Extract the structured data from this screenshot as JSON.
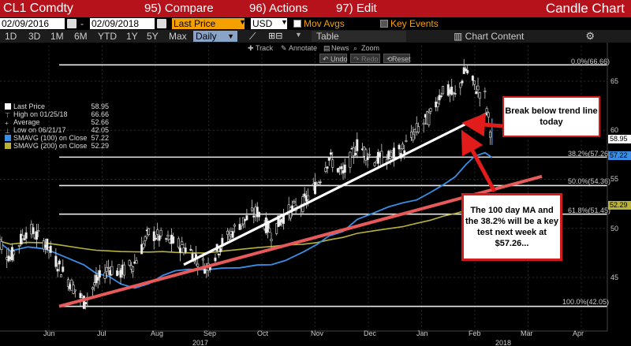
{
  "titlebar": {
    "ticker": "CL1 Comdty",
    "menu_compare": "95) Compare",
    "menu_actions": "96) Actions",
    "menu_edit": "97) Edit",
    "chart_name": "Candle Chart"
  },
  "controls": {
    "date_from": "02/09/2016",
    "date_to": "02/09/2018",
    "price_field": "Last Price",
    "currency": "USD",
    "mov_avgs_label": "Mov Avgs",
    "key_events_label": "Key Events"
  },
  "toolbar": {
    "ranges": [
      "1D",
      "3D",
      "1M",
      "6M",
      "YTD",
      "1Y",
      "5Y",
      "Max"
    ],
    "frequency": "Daily",
    "table_label": "Table",
    "chart_content_label": "Chart Content"
  },
  "annotation_tools": {
    "track": "Track",
    "annotate": "Annotate",
    "news": "News",
    "zoom": "Zoom",
    "undo": "Undo",
    "redo": "Redo",
    "reset": "Reset"
  },
  "legend": [
    {
      "label": "Last Price",
      "value": "58.95",
      "color": "#ffffff"
    },
    {
      "label": "High on 01/25/18",
      "value": "66.66",
      "color": ""
    },
    {
      "label": "Average",
      "value": "52.66",
      "color": ""
    },
    {
      "label": "Low on 06/21/17",
      "value": "42.05",
      "color": ""
    },
    {
      "label": "SMAVG (100) on Close",
      "value": "57.22",
      "color": "#3a8ee6"
    },
    {
      "label": "SMAVG (200) on Close",
      "value": "52.29",
      "color": "#b8b23a"
    }
  ],
  "annotations": {
    "trend_break": "Break below trend line today",
    "ma_test": "The 100 day MA and the 38.2% will be a key test next week at $57.26..."
  },
  "fib_levels": [
    {
      "label": "0.0%(66.66)",
      "value": 66.66
    },
    {
      "label": "38.2%(57.26)",
      "value": 57.26
    },
    {
      "label": "50.0%(54.36)",
      "value": 54.36
    },
    {
      "label": "61.8%(51.45)",
      "value": 51.45
    },
    {
      "label": "100.0%(42.05)",
      "value": 42.05
    }
  ],
  "price_tags": [
    {
      "label": "58.95",
      "value": 58.95,
      "bg": "#ffffff",
      "fg": "#000000"
    },
    {
      "label": "57.22",
      "value": 57.22,
      "bg": "#3a8ee6",
      "fg": "#000000"
    },
    {
      "label": "52.29",
      "value": 52.29,
      "bg": "#b8b23a",
      "fg": "#000000"
    }
  ],
  "chart_data": {
    "type": "candlestick",
    "title": "",
    "y_ticks": [
      45,
      50,
      55,
      60,
      65
    ],
    "ylim": [
      40,
      68.5
    ],
    "x_ticks": [
      "Jun",
      "Jul",
      "Aug",
      "Sep",
      "Oct",
      "Nov",
      "Dec",
      "Jan",
      "Feb",
      "Mar",
      "Apr"
    ],
    "year_labels": [
      "2017",
      "2018"
    ],
    "price_path": [
      {
        "date": "2017-05-01",
        "close": 49.5
      },
      {
        "date": "2017-05-10",
        "close": 47.0
      },
      {
        "date": "2017-05-20",
        "close": 50.0
      },
      {
        "date": "2017-05-30",
        "close": 48.5
      },
      {
        "date": "2017-06-08",
        "close": 45.8
      },
      {
        "date": "2017-06-21",
        "close": 42.5
      },
      {
        "date": "2017-06-28",
        "close": 44.5
      },
      {
        "date": "2017-07-05",
        "close": 46.0
      },
      {
        "date": "2017-07-12",
        "close": 45.5
      },
      {
        "date": "2017-07-20",
        "close": 46.5
      },
      {
        "date": "2017-07-28",
        "close": 49.5
      },
      {
        "date": "2017-08-05",
        "close": 49.0
      },
      {
        "date": "2017-08-12",
        "close": 48.5
      },
      {
        "date": "2017-08-20",
        "close": 47.8
      },
      {
        "date": "2017-08-30",
        "close": 46.0
      },
      {
        "date": "2017-09-08",
        "close": 48.5
      },
      {
        "date": "2017-09-18",
        "close": 50.5
      },
      {
        "date": "2017-09-28",
        "close": 51.7
      },
      {
        "date": "2017-10-06",
        "close": 49.5
      },
      {
        "date": "2017-10-14",
        "close": 51.5
      },
      {
        "date": "2017-10-24",
        "close": 52.5
      },
      {
        "date": "2017-11-01",
        "close": 54.5
      },
      {
        "date": "2017-11-08",
        "close": 57.2
      },
      {
        "date": "2017-11-16",
        "close": 55.5
      },
      {
        "date": "2017-11-24",
        "close": 58.5
      },
      {
        "date": "2017-12-04",
        "close": 57.0
      },
      {
        "date": "2017-12-12",
        "close": 57.2
      },
      {
        "date": "2017-12-20",
        "close": 58.0
      },
      {
        "date": "2017-12-28",
        "close": 60.0
      },
      {
        "date": "2018-01-05",
        "close": 61.5
      },
      {
        "date": "2018-01-12",
        "close": 64.3
      },
      {
        "date": "2018-01-19",
        "close": 63.4
      },
      {
        "date": "2018-01-25",
        "close": 66.2
      },
      {
        "date": "2018-01-30",
        "close": 64.5
      },
      {
        "date": "2018-02-05",
        "close": 63.4
      },
      {
        "date": "2018-02-09",
        "close": 58.95
      }
    ],
    "series": [
      {
        "name": "SMAVG (100) on Close",
        "last": 57.22
      },
      {
        "name": "SMAVG (200) on Close",
        "last": 52.29
      }
    ]
  }
}
